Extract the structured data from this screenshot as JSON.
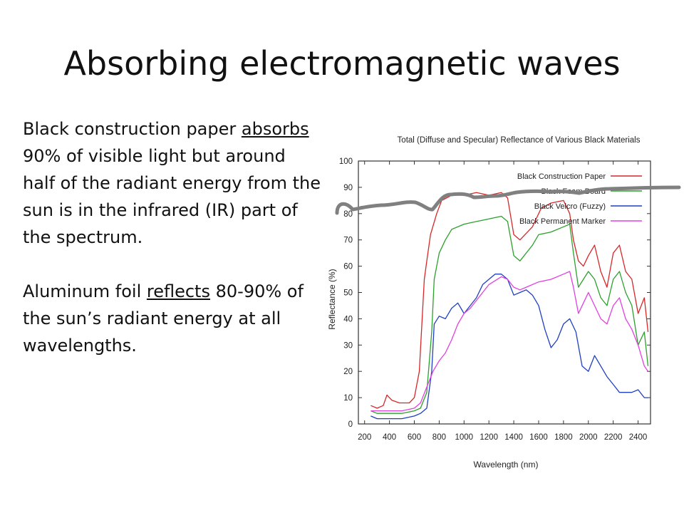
{
  "slide": {
    "title": "Absorbing electromagnetic waves",
    "para1": {
      "before": "Black construction paper ",
      "underlined": "absorbs",
      "after": " 90% of visible light but around half of the radiant energy from the sun is in the infrared (IR) part of the spectrum."
    },
    "para2": {
      "before": "Aluminum foil ",
      "underlined": "reflects",
      "after": " 80-90% of the sun’s radiant energy at all wavelengths."
    }
  },
  "chart_data": {
    "type": "line",
    "title": "Total (Diffuse and Specular) Reflectance of Various Black Materials",
    "xlabel": "Wavelength (nm)",
    "ylabel": "Reflectance (%)",
    "xlim": [
      150,
      2500
    ],
    "ylim": [
      0,
      100
    ],
    "xticks": [
      200,
      400,
      600,
      800,
      1000,
      1200,
      1400,
      1600,
      1800,
      2000,
      2200,
      2400
    ],
    "yticks": [
      0,
      10,
      20,
      30,
      40,
      50,
      60,
      70,
      80,
      90,
      100
    ],
    "legend": "top-right",
    "grid": false,
    "series": [
      {
        "name": "Black Construction Paper",
        "color": "#d62728",
        "x": [
          250,
          300,
          350,
          380,
          420,
          480,
          560,
          600,
          640,
          680,
          700,
          730,
          780,
          820,
          900,
          1000,
          1100,
          1200,
          1300,
          1350,
          1400,
          1450,
          1550,
          1620,
          1700,
          1800,
          1850,
          1880,
          1920,
          1960,
          2000,
          2050,
          2100,
          2150,
          2200,
          2250,
          2300,
          2350,
          2400,
          2450,
          2480
        ],
        "y": [
          7,
          6,
          7,
          11,
          9,
          8,
          8,
          10,
          20,
          55,
          62,
          72,
          80,
          85,
          87,
          87,
          88,
          87,
          88,
          86,
          72,
          70,
          75,
          82,
          84,
          85,
          80,
          70,
          62,
          60,
          64,
          68,
          58,
          52,
          65,
          68,
          58,
          55,
          42,
          48,
          35
        ]
      },
      {
        "name": "Black Foam Board",
        "color": "#2ca02c",
        "x": [
          250,
          300,
          400,
          500,
          600,
          650,
          700,
          740,
          760,
          800,
          850,
          900,
          1000,
          1100,
          1200,
          1300,
          1350,
          1400,
          1450,
          1550,
          1600,
          1700,
          1800,
          1850,
          1880,
          1920,
          1960,
          2000,
          2050,
          2100,
          2150,
          2200,
          2250,
          2300,
          2350,
          2400,
          2450,
          2480
        ],
        "y": [
          5,
          4,
          4,
          4,
          5,
          6,
          12,
          35,
          55,
          65,
          70,
          74,
          76,
          77,
          78,
          79,
          77,
          64,
          62,
          68,
          72,
          73,
          75,
          76,
          65,
          52,
          55,
          58,
          55,
          48,
          45,
          55,
          58,
          50,
          45,
          30,
          35,
          22
        ]
      },
      {
        "name": "Black Velcro (Fuzzy)",
        "color": "#1f3fbf",
        "x": [
          250,
          300,
          400,
          500,
          600,
          650,
          700,
          740,
          760,
          800,
          850,
          900,
          950,
          1000,
          1050,
          1100,
          1150,
          1200,
          1250,
          1300,
          1350,
          1400,
          1450,
          1500,
          1550,
          1600,
          1650,
          1700,
          1750,
          1800,
          1850,
          1900,
          1950,
          2000,
          2050,
          2100,
          2150,
          2200,
          2250,
          2300,
          2350,
          2400,
          2450,
          2480
        ],
        "y": [
          3,
          2,
          2,
          2,
          3,
          4,
          6,
          20,
          38,
          41,
          40,
          44,
          46,
          42,
          45,
          48,
          53,
          55,
          57,
          57,
          55,
          49,
          50,
          51,
          49,
          45,
          36,
          29,
          32,
          38,
          40,
          35,
          22,
          20,
          26,
          22,
          18,
          15,
          12,
          12,
          12,
          13,
          10,
          10
        ]
      },
      {
        "name": "Black Permanent Marker",
        "color": "#e040e0",
        "x": [
          250,
          300,
          400,
          500,
          600,
          650,
          700,
          750,
          800,
          850,
          900,
          950,
          1000,
          1050,
          1100,
          1200,
          1300,
          1350,
          1400,
          1450,
          1500,
          1600,
          1700,
          1800,
          1850,
          1880,
          1920,
          1960,
          2000,
          2050,
          2100,
          2150,
          2200,
          2250,
          2300,
          2350,
          2400,
          2450,
          2480
        ],
        "y": [
          5,
          5,
          5,
          5,
          6,
          8,
          14,
          20,
          24,
          27,
          32,
          38,
          42,
          44,
          47,
          53,
          56,
          55,
          52,
          51,
          52,
          54,
          55,
          57,
          58,
          52,
          42,
          46,
          50,
          45,
          40,
          38,
          45,
          48,
          40,
          36,
          30,
          22,
          20
        ]
      }
    ]
  }
}
